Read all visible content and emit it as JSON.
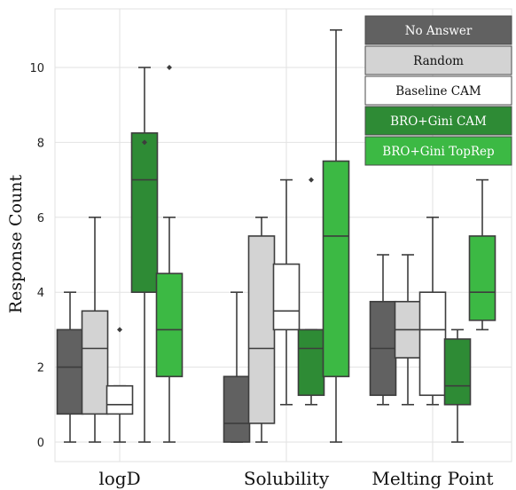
{
  "chart_data": {
    "type": "box",
    "title": "",
    "xlabel": "",
    "ylabel": "Response Count",
    "ylim": [
      -0.5,
      11.5
    ],
    "yticks": [
      0,
      2,
      4,
      6,
      8,
      10
    ],
    "grid": true,
    "legend_position": "top-right",
    "categories": [
      "logD",
      "Solubility",
      "Melting Point"
    ],
    "series": [
      {
        "name": "No Answer",
        "color": "#616161",
        "text_color": "#ffffff",
        "boxes": [
          {
            "whisker_low": 0,
            "q1": 0.75,
            "median": 2,
            "q3": 3,
            "whisker_high": 4,
            "outliers": []
          },
          {
            "whisker_low": 0,
            "q1": 0,
            "median": 0.5,
            "q3": 1.75,
            "whisker_high": 4,
            "outliers": []
          },
          {
            "whisker_low": 1,
            "q1": 1.25,
            "median": 2.5,
            "q3": 3.75,
            "whisker_high": 5,
            "outliers": []
          }
        ]
      },
      {
        "name": "Random",
        "color": "#d3d3d3",
        "text_color": "#111111",
        "boxes": [
          {
            "whisker_low": 0,
            "q1": 0.75,
            "median": 2.5,
            "q3": 3.5,
            "whisker_high": 6,
            "outliers": []
          },
          {
            "whisker_low": 0,
            "q1": 0.5,
            "median": 2.5,
            "q3": 5.5,
            "whisker_high": 6,
            "outliers": []
          },
          {
            "whisker_low": 1,
            "q1": 2.25,
            "median": 3,
            "q3": 3.75,
            "whisker_high": 5,
            "outliers": []
          }
        ]
      },
      {
        "name": "Baseline CAM",
        "color": "#ffffff",
        "text_color": "#111111",
        "boxes": [
          {
            "whisker_low": 0,
            "q1": 0.75,
            "median": 1,
            "q3": 1.5,
            "whisker_high": 1.5,
            "outliers": [
              3
            ]
          },
          {
            "whisker_low": 1,
            "q1": 3,
            "median": 3.5,
            "q3": 4.75,
            "whisker_high": 7,
            "outliers": []
          },
          {
            "whisker_low": 1,
            "q1": 1.25,
            "median": 3,
            "q3": 4,
            "whisker_high": 6,
            "outliers": []
          }
        ]
      },
      {
        "name": "BRO+Gini CAM",
        "color": "#2e8b35",
        "text_color": "#ffffff",
        "boxes": [
          {
            "whisker_low": 0,
            "q1": 4,
            "median": 7,
            "q3": 8.25,
            "whisker_high": 10,
            "outliers": [
              8
            ]
          },
          {
            "whisker_low": 1,
            "q1": 1.25,
            "median": 2.5,
            "q3": 3,
            "whisker_high": 3,
            "outliers": [
              7
            ]
          },
          {
            "whisker_low": 0,
            "q1": 1,
            "median": 1.5,
            "q3": 2.75,
            "whisker_high": 3,
            "outliers": []
          }
        ]
      },
      {
        "name": "BRO+Gini TopRep",
        "color": "#3cb944",
        "text_color": "#ffffff",
        "boxes": [
          {
            "whisker_low": 0,
            "q1": 1.75,
            "median": 3,
            "q3": 4.5,
            "whisker_high": 6,
            "outliers": [
              10
            ]
          },
          {
            "whisker_low": 0,
            "q1": 1.75,
            "median": 5.5,
            "q3": 7.5,
            "whisker_high": 11,
            "outliers": []
          },
          {
            "whisker_low": 3,
            "q1": 3.25,
            "median": 4,
            "q3": 5.5,
            "whisker_high": 7,
            "outliers": []
          }
        ]
      }
    ]
  }
}
